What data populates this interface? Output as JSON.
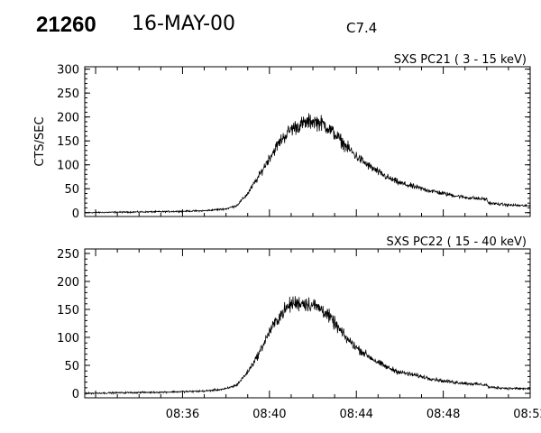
{
  "header": {
    "event_id": "21260",
    "date": "16-MAY-00",
    "flare_class": "C7.4"
  },
  "chart_data": [
    {
      "type": "line",
      "title": "SXS PC21  (  3 - 15 keV)",
      "ylabel": "CTS/SEC",
      "xlabel": "",
      "xlim": [
        "08:31:30",
        "08:52:00"
      ],
      "ylim": [
        -8,
        305
      ],
      "yticks": [
        0,
        50,
        100,
        150,
        200,
        250,
        300
      ],
      "xticks": [
        "08:36",
        "08:40",
        "08:44",
        "08:48",
        "08:52"
      ],
      "xtick_labels_shown": false,
      "series": [
        {
          "x": [
            "08:31:30",
            "08:33:00",
            "08:35:00",
            "08:37:00",
            "08:38:00",
            "08:38:30",
            "08:39:00",
            "08:39:30",
            "08:40:00",
            "08:40:30",
            "08:41:00",
            "08:41:30",
            "08:42:00",
            "08:42:30",
            "08:43:00",
            "08:43:30",
            "08:44:00",
            "08:44:30",
            "08:45:00",
            "08:45:30",
            "08:46:00",
            "08:47:00",
            "08:48:00",
            "08:49:00",
            "08:50:00",
            "08:50:05",
            "08:51:00",
            "08:52:00"
          ],
          "values": [
            0,
            1,
            2,
            4,
            8,
            15,
            40,
            75,
            115,
            150,
            175,
            185,
            192,
            185,
            165,
            140,
            118,
            100,
            85,
            72,
            62,
            50,
            40,
            32,
            28,
            20,
            16,
            14
          ]
        }
      ]
    },
    {
      "type": "line",
      "title": "SXS PC22  ( 15 - 40 keV)",
      "ylabel": "",
      "xlabel": "",
      "xlim": [
        "08:31:30",
        "08:52:00"
      ],
      "ylim": [
        -8,
        258
      ],
      "yticks": [
        0,
        50,
        100,
        150,
        200,
        250
      ],
      "xticks": [
        "08:36",
        "08:40",
        "08:44",
        "08:48",
        "08:52"
      ],
      "xtick_labels_shown": true,
      "series": [
        {
          "x": [
            "08:31:30",
            "08:33:00",
            "08:35:00",
            "08:37:00",
            "08:38:00",
            "08:38:30",
            "08:39:00",
            "08:39:30",
            "08:40:00",
            "08:40:30",
            "08:41:00",
            "08:41:30",
            "08:42:00",
            "08:42:30",
            "08:43:00",
            "08:43:30",
            "08:44:00",
            "08:44:30",
            "08:45:00",
            "08:45:30",
            "08:46:00",
            "08:47:00",
            "08:48:00",
            "08:49:00",
            "08:50:00",
            "08:50:05",
            "08:51:00",
            "08:52:00"
          ],
          "values": [
            0,
            1,
            2,
            4,
            8,
            15,
            38,
            70,
            110,
            140,
            160,
            162,
            158,
            148,
            125,
            100,
            82,
            68,
            55,
            45,
            38,
            30,
            22,
            18,
            15,
            11,
            9,
            8
          ]
        }
      ]
    }
  ]
}
